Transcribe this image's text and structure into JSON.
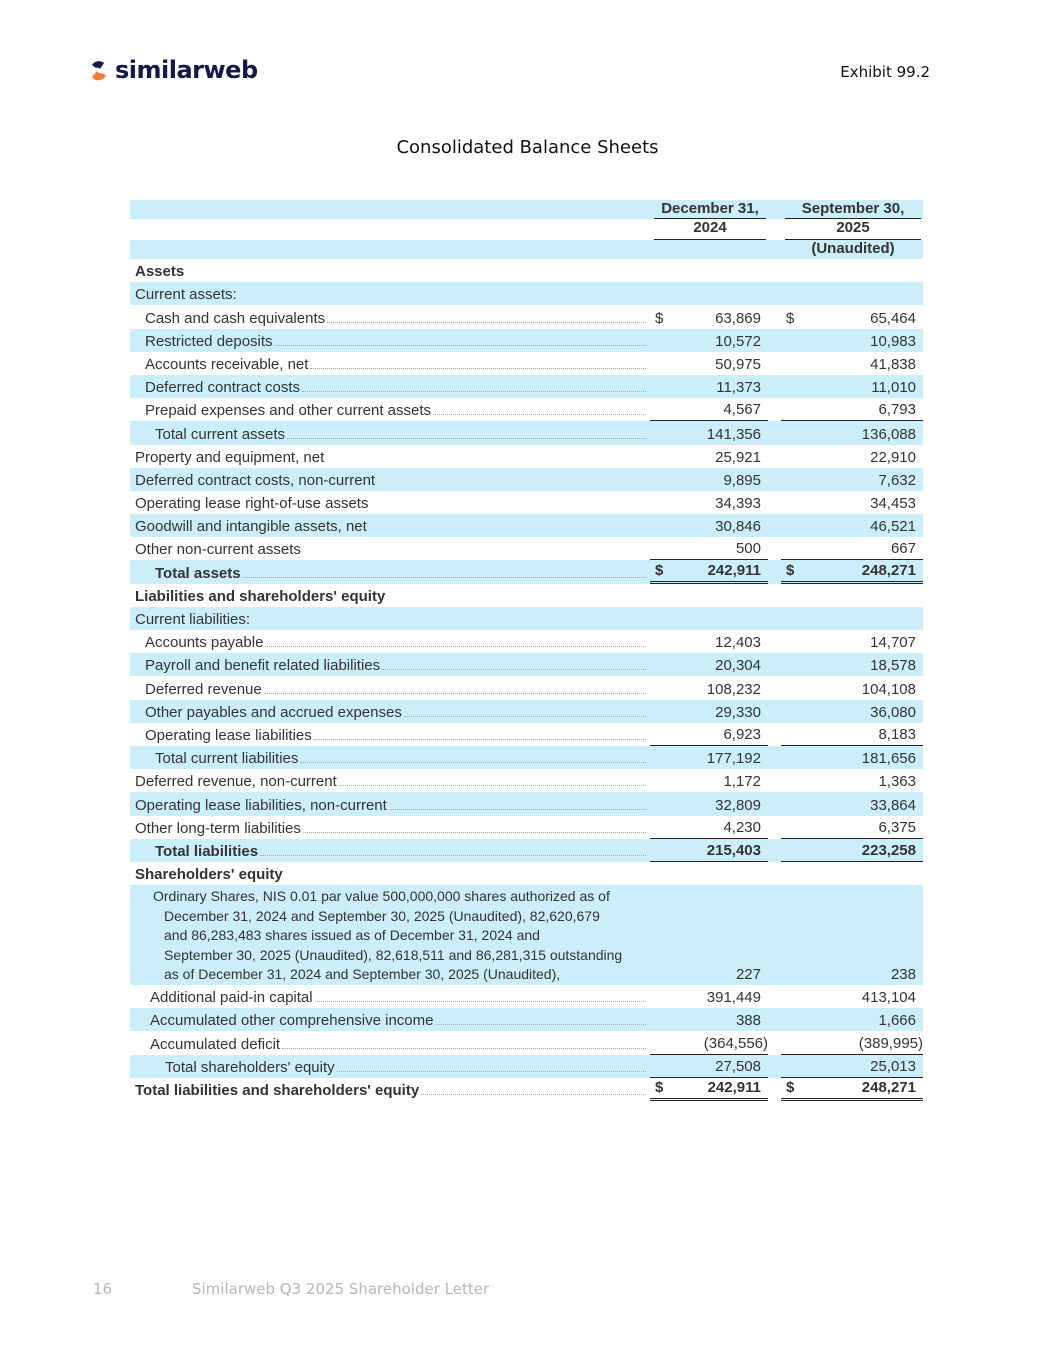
{
  "header": {
    "logo": "similarweb",
    "exhibit": "Exhibit 99.2"
  },
  "title": "Consolidated Balance Sheets",
  "table": {
    "columns": [
      [
        "December 31,",
        "2024"
      ],
      [
        "September 30,",
        "2025",
        "(Unaudited)"
      ]
    ],
    "rows": [
      {
        "label": "Assets"
      },
      {
        "label": "Current assets:"
      },
      {
        "label": "Cash and cash equivalents",
        "values": [
          {
            "cur": "$",
            "amount": "63,869"
          },
          {
            "cur": "$",
            "amount": "65,464"
          }
        ]
      },
      {
        "label": "Restricted deposits",
        "values": [
          {
            "amount": "10,572"
          },
          {
            "amount": "10,983"
          }
        ]
      },
      {
        "label": "Accounts receivable, net",
        "values": [
          {
            "amount": "50,975"
          },
          {
            "amount": "41,838"
          }
        ]
      },
      {
        "label": "Deferred contract costs",
        "values": [
          {
            "amount": "11,373"
          },
          {
            "amount": "11,010"
          }
        ]
      },
      {
        "label": "Prepaid expenses and other current assets",
        "values": [
          {
            "amount": "4,567"
          },
          {
            "amount": "6,793"
          }
        ]
      },
      {
        "label": "Total current assets",
        "values": [
          {
            "amount": "141,356"
          },
          {
            "amount": "136,088"
          }
        ]
      },
      {
        "label": "Property and equipment, net",
        "values": [
          {
            "amount": "25,921"
          },
          {
            "amount": "22,910"
          }
        ]
      },
      {
        "label": "Deferred contract costs, non-current",
        "values": [
          {
            "amount": "9,895"
          },
          {
            "amount": "7,632"
          }
        ]
      },
      {
        "label": "Operating lease right-of-use assets",
        "values": [
          {
            "amount": "34,393"
          },
          {
            "amount": "34,453"
          }
        ]
      },
      {
        "label": "Goodwill and intangible assets, net",
        "values": [
          {
            "amount": "30,846"
          },
          {
            "amount": "46,521"
          }
        ]
      },
      {
        "label": "Other non-current assets",
        "values": [
          {
            "amount": "500"
          },
          {
            "amount": "667"
          }
        ]
      },
      {
        "label": "Total assets",
        "values": [
          {
            "cur": "$",
            "amount": "242,911"
          },
          {
            "cur": "$",
            "amount": "248,271"
          }
        ]
      },
      {
        "label": "Liabilities and shareholders' equity"
      },
      {
        "label": "Current liabilities:"
      },
      {
        "label": "Accounts payable",
        "values": [
          {
            "amount": "12,403"
          },
          {
            "amount": "14,707"
          }
        ]
      },
      {
        "label": "Payroll and benefit related liabilities",
        "values": [
          {
            "amount": "20,304"
          },
          {
            "amount": "18,578"
          }
        ]
      },
      {
        "label": "Deferred revenue",
        "values": [
          {
            "amount": "108,232"
          },
          {
            "amount": "104,108"
          }
        ]
      },
      {
        "label": "Other payables and accrued expenses",
        "values": [
          {
            "amount": "29,330"
          },
          {
            "amount": "36,080"
          }
        ]
      },
      {
        "label": "Operating lease liabilities",
        "values": [
          {
            "amount": "6,923"
          },
          {
            "amount": "8,183"
          }
        ]
      },
      {
        "label": "Total current liabilities",
        "values": [
          {
            "amount": "177,192"
          },
          {
            "amount": "181,656"
          }
        ]
      },
      {
        "label": "Deferred revenue, non-current",
        "values": [
          {
            "amount": "1,172"
          },
          {
            "amount": "1,363"
          }
        ]
      },
      {
        "label": "Operating lease liabilities, non-current",
        "values": [
          {
            "amount": "32,809"
          },
          {
            "amount": "33,864"
          }
        ]
      },
      {
        "label": "Other long-term liabilities",
        "values": [
          {
            "amount": "4,230"
          },
          {
            "amount": "6,375"
          }
        ]
      },
      {
        "label": "Total liabilities",
        "values": [
          {
            "amount": "215,403"
          },
          {
            "amount": "223,258"
          }
        ]
      },
      {
        "label": "Shareholders' equity"
      },
      {
        "lines": [
          "Ordinary Shares, NIS 0.01 par value 500,000,000 shares authorized as of",
          "December 31, 2024 and September 30, 2025 (Unaudited), 82,620,679",
          "and 86,283,483 shares issued as of December 31, 2024 and",
          "September 30, 2025 (Unaudited), 82,618,511 and 86,281,315 outstanding",
          "as of December 31, 2024 and September 30, 2025 (Unaudited),"
        ],
        "values": [
          {
            "amount": "227"
          },
          {
            "amount": "238"
          }
        ]
      },
      {
        "label": "Additional paid-in capital",
        "values": [
          {
            "amount": "391,449"
          },
          {
            "amount": "413,104"
          }
        ]
      },
      {
        "label": "Accumulated other comprehensive income",
        "values": [
          {
            "amount": "388"
          },
          {
            "amount": "1,666"
          }
        ]
      },
      {
        "label": "Accumulated deficit",
        "values": [
          {
            "amount": "(364,556)"
          },
          {
            "amount": "(389,995)"
          }
        ]
      },
      {
        "label": "Total shareholders' equity",
        "values": [
          {
            "amount": "27,508"
          },
          {
            "amount": "25,013"
          }
        ]
      },
      {
        "label": "Total liabilities and shareholders' equity",
        "values": [
          {
            "cur": "$",
            "amount": "242,911"
          },
          {
            "cur": "$",
            "amount": "248,271"
          }
        ]
      }
    ]
  },
  "footer": {
    "page": "16",
    "text": "Similarweb Q3 2025 Shareholder Letter"
  }
}
